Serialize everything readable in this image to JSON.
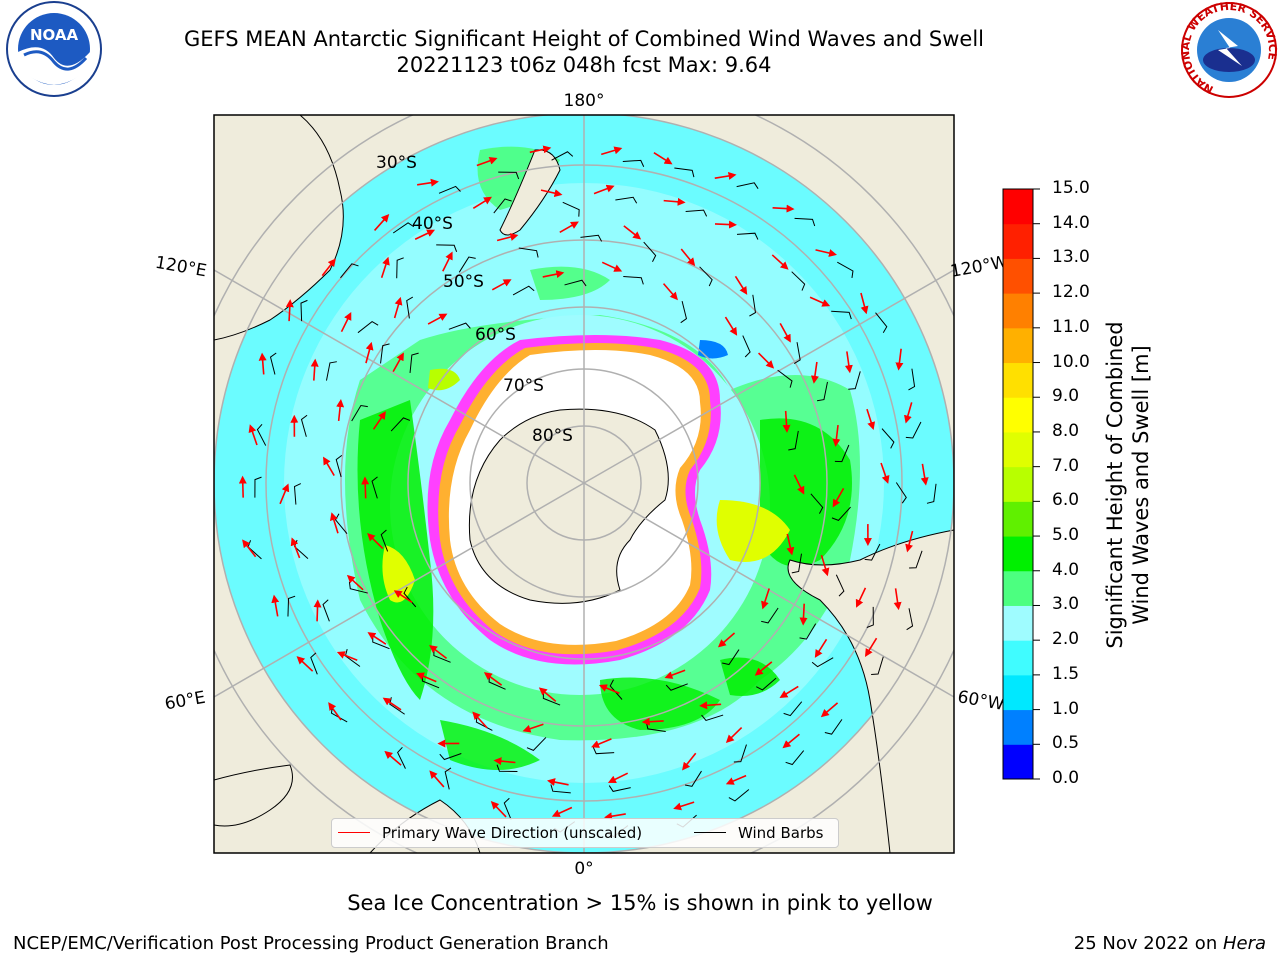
{
  "title_line1": "GEFS MEAN Antarctic Significant Height of Combined Wind Waves and Swell",
  "title_line2": "20221123 t06z 048h fcst   Max: 9.64",
  "logo_left": "NOAA",
  "logo_right": "NATIONAL WEATHER SERVICE",
  "map": {
    "projection": "south-polar-stereographic",
    "longitude_labels": [
      "180°",
      "120°E",
      "120°W",
      "60°E",
      "60°W",
      "0°"
    ],
    "latitude_labels": [
      "30°S",
      "40°S",
      "50°S",
      "60°S",
      "70°S",
      "80°S"
    ],
    "ocean_color": "#9ffcff",
    "land_color": "#efecdc",
    "ice_color": "#ffffff",
    "ice_edge_colors": [
      "#ff40ff",
      "#ffb030"
    ],
    "arrow_color": "#ff0000",
    "barb_color": "#000000"
  },
  "legend": {
    "primary_wave": "Primary Wave Direction (unscaled)",
    "wind_barbs": "Wind Barbs",
    "primary_wave_color": "#ff0000",
    "wind_barbs_color": "#000000"
  },
  "colorbar": {
    "label_line1": "Significant Height of Combined",
    "label_line2": "Wind Waves and Swell [m]",
    "ticks": [
      "0.0",
      "0.5",
      "1.0",
      "1.5",
      "2.0",
      "3.0",
      "4.0",
      "5.0",
      "6.0",
      "7.0",
      "8.0",
      "9.0",
      "10.0",
      "11.0",
      "12.0",
      "13.0",
      "14.0",
      "15.0"
    ],
    "colors": [
      "#0000ff",
      "#0080ff",
      "#00e8ff",
      "#40fcff",
      "#9ffcff",
      "#4cff80",
      "#00f000",
      "#60f000",
      "#b8ff00",
      "#e0ff00",
      "#ffff00",
      "#ffe000",
      "#ffb000",
      "#ff8000",
      "#ff5000",
      "#ff2000",
      "#ff0000"
    ]
  },
  "sea_ice_note": "Sea Ice Concentration > 15% is shown in pink to yellow",
  "credit": "NCEP/EMC/Verification Post Processing Product Generation Branch",
  "date_prefix": "25 Nov 2022 on ",
  "host": "Hera"
}
